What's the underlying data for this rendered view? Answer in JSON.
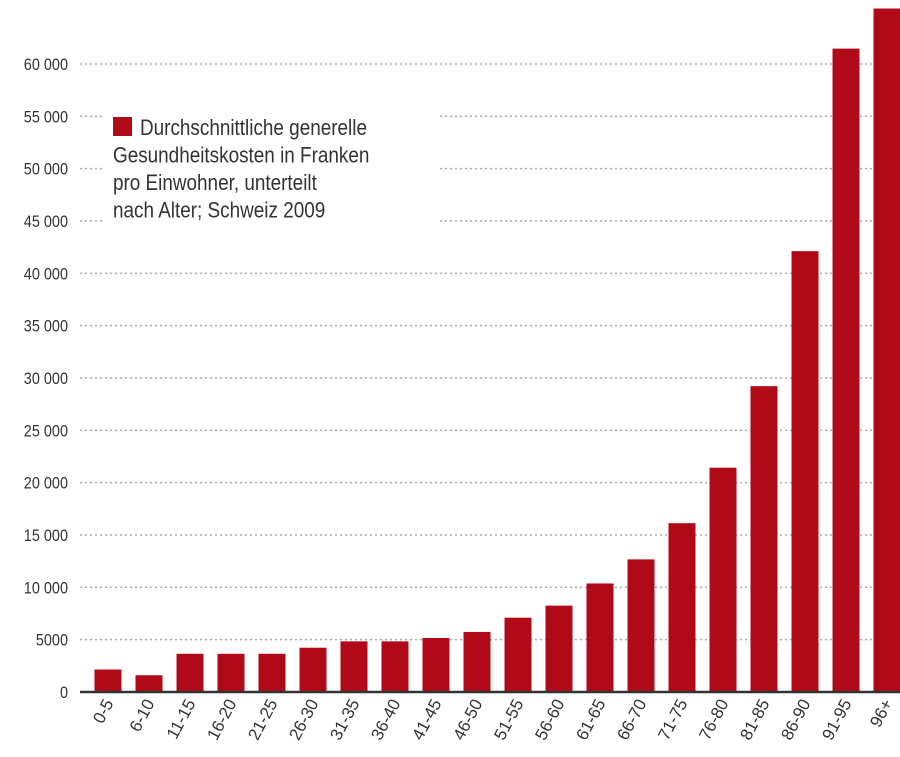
{
  "chart_data": {
    "type": "bar",
    "title": "",
    "legend": {
      "entries": [
        "Durchschnittliche generelle Gesundheitskosten in Franken pro Einwohner, unterteilt nach Alter; Schweiz 2009"
      ],
      "lines": [
        "Durchschnittliche generelle",
        "Gesundheitskosten in Franken",
        "pro Einwohner, unterteilt",
        "nach Alter; Schweiz 2009"
      ],
      "placement": "top-left"
    },
    "categories": [
      "0-5",
      "6-10",
      "11-15",
      "16-20",
      "21-25",
      "26-30",
      "31-35",
      "36-40",
      "41-45",
      "46-50",
      "51-55",
      "56-60",
      "61-65",
      "66-70",
      "71-75",
      "76-80",
      "81-85",
      "86-90",
      "91-95",
      "96+"
    ],
    "values": [
      2150,
      1600,
      3650,
      3650,
      3650,
      4230,
      4840,
      4840,
      5160,
      5740,
      7100,
      8250,
      10370,
      12670,
      16130,
      21430,
      29220,
      42120,
      61470,
      65300
    ],
    "yticks": [
      0,
      5000,
      10000,
      15000,
      20000,
      25000,
      30000,
      35000,
      40000,
      45000,
      50000,
      55000,
      60000
    ],
    "ytick_labels": [
      "0",
      "5000",
      "10 000",
      "15 000",
      "20 000",
      "25 000",
      "30 000",
      "35 000",
      "40 000",
      "45 000",
      "50 000",
      "55 000",
      "60 000"
    ],
    "xlabel": "",
    "ylabel": "",
    "ylim": [
      0,
      66000
    ],
    "grid": true,
    "bar_color": "#b00a19"
  }
}
